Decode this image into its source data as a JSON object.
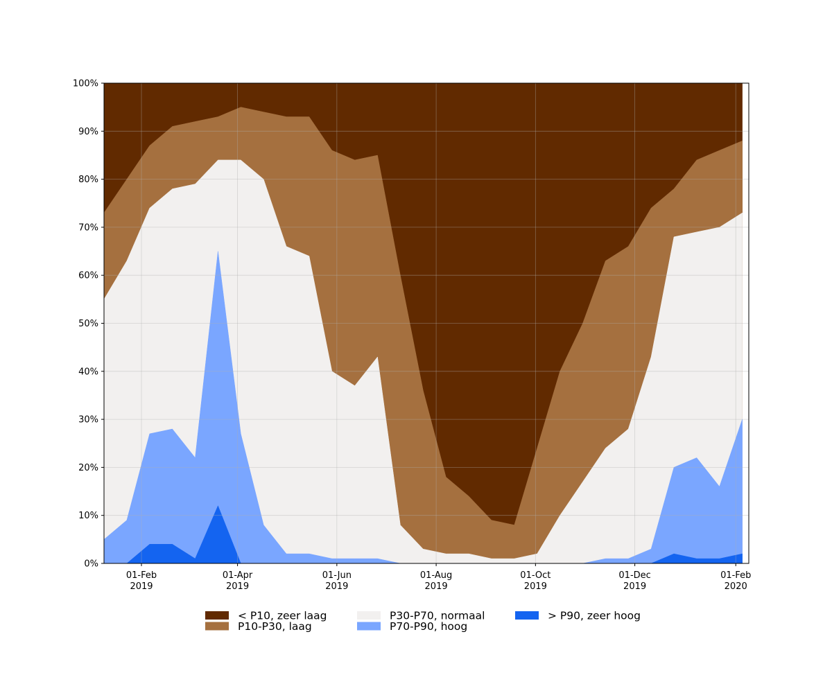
{
  "chart_data": {
    "type": "stacked-area",
    "x": [
      "2019-01-09",
      "2019-01-23",
      "2019-02-06",
      "2019-02-20",
      "2019-03-06",
      "2019-03-20",
      "2019-04-03",
      "2019-04-17",
      "2019-05-01",
      "2019-05-15",
      "2019-05-29",
      "2019-06-12",
      "2019-06-26",
      "2019-07-10",
      "2019-07-24",
      "2019-08-07",
      "2019-08-21",
      "2019-09-04",
      "2019-09-18",
      "2019-10-02",
      "2019-10-16",
      "2019-10-30",
      "2019-11-13",
      "2019-11-27",
      "2019-12-11",
      "2019-12-25",
      "2020-01-08",
      "2020-01-22",
      "2020-02-05"
    ],
    "series": [
      {
        "name": "< P10, zeer laag",
        "color": "#612a00",
        "values": [
          27,
          20,
          13,
          9,
          8,
          7,
          5,
          6,
          7,
          7,
          14,
          16,
          15,
          40,
          64,
          82,
          86,
          91,
          92,
          76,
          60,
          50,
          37,
          34,
          26,
          22,
          16,
          14,
          12
        ]
      },
      {
        "name": "P10-P30, laag",
        "color": "#a5703f",
        "values": [
          18,
          17,
          13,
          13,
          13,
          9,
          11,
          14,
          27,
          29,
          46,
          47,
          42,
          52,
          33,
          16,
          12,
          8,
          7,
          22,
          30,
          33,
          39,
          38,
          31,
          10,
          15,
          16,
          15
        ]
      },
      {
        "name": "P30-P70, normaal",
        "color": "#f2f0ef",
        "values": [
          50,
          54,
          47,
          50,
          57,
          19,
          57,
          72,
          64,
          62,
          39,
          36,
          42,
          8,
          3,
          2,
          2,
          1,
          1,
          2,
          10,
          17,
          23,
          27,
          40,
          48,
          47,
          54,
          43
        ]
      },
      {
        "name": "P70-P90, hoog",
        "color": "#7aa6ff",
        "values": [
          5,
          9,
          23,
          24,
          21,
          53,
          27,
          8,
          2,
          2,
          1,
          1,
          1,
          0,
          0,
          0,
          0,
          0,
          0,
          0,
          0,
          0,
          1,
          1,
          3,
          18,
          21,
          15,
          28
        ]
      },
      {
        "name": "> P90, zeer hoog",
        "color": "#1464f0",
        "values": [
          0,
          0,
          4,
          4,
          1,
          12,
          0,
          0,
          0,
          0,
          0,
          0,
          0,
          0,
          0,
          0,
          0,
          0,
          0,
          0,
          0,
          0,
          0,
          0,
          0,
          2,
          1,
          1,
          2
        ]
      }
    ],
    "xlim": [
      "2019-01-09",
      "2020-02-09"
    ],
    "xticks": [
      {
        "value": "2019-02-01",
        "label": [
          "01-Feb",
          "2019"
        ]
      },
      {
        "value": "2019-04-01",
        "label": [
          "01-Apr",
          "2019"
        ]
      },
      {
        "value": "2019-06-01",
        "label": [
          "01-Jun",
          "2019"
        ]
      },
      {
        "value": "2019-08-01",
        "label": [
          "01-Aug",
          "2019"
        ]
      },
      {
        "value": "2019-10-01",
        "label": [
          "01-Oct",
          "2019"
        ]
      },
      {
        "value": "2019-12-01",
        "label": [
          "01-Dec",
          "2019"
        ]
      },
      {
        "value": "2020-02-01",
        "label": [
          "01-Feb",
          "2020"
        ]
      }
    ],
    "ylim": [
      0,
      100
    ],
    "yticks": [
      {
        "value": 0,
        "label": "0%"
      },
      {
        "value": 10,
        "label": "10%"
      },
      {
        "value": 20,
        "label": "20%"
      },
      {
        "value": 30,
        "label": "30%"
      },
      {
        "value": 40,
        "label": "40%"
      },
      {
        "value": 50,
        "label": "50%"
      },
      {
        "value": 60,
        "label": "60%"
      },
      {
        "value": 70,
        "label": "70%"
      },
      {
        "value": 80,
        "label": "80%"
      },
      {
        "value": 90,
        "label": "90%"
      },
      {
        "value": 100,
        "label": "100%"
      }
    ],
    "grid": true,
    "legend": "bottom"
  }
}
